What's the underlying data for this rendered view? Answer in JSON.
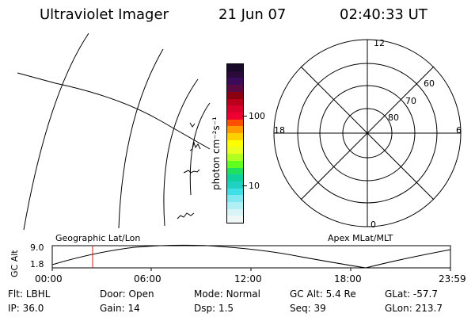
{
  "header": {
    "instrument": "Ultraviolet Imager",
    "date": "21 Jun 07",
    "time": "02:40:33 UT"
  },
  "colorbar": {
    "unit_label": "photon cm⁻²s⁻¹",
    "ticks": [
      "100",
      "10"
    ],
    "colors": [
      "#1a0a2a",
      "#2a0a3a",
      "#3c0c5a",
      "#5a0a40",
      "#8a0010",
      "#b8001a",
      "#d8002a",
      "#ee0030",
      "#ff5000",
      "#ff9a00",
      "#ffd000",
      "#ffff00",
      "#e8ff20",
      "#b0ff20",
      "#60ff20",
      "#20e060",
      "#10d0a0",
      "#20d0c0",
      "#40e0e8",
      "#80e8f0",
      "#b0f0f4",
      "#d8f4f6",
      "#eef6f6"
    ]
  },
  "polar_plot": {
    "mlt_labels": [
      "12",
      "18",
      "6",
      "0"
    ],
    "lat_labels": [
      "80",
      "70",
      "60"
    ]
  },
  "timeline": {
    "ylabel": "GC Alt",
    "yticks": [
      "9.0",
      "1.8"
    ],
    "left_title": "Geographic Lat/Lon",
    "right_title": "Apex MLat/MLT",
    "xticks": [
      "00:00",
      "06:00",
      "12:00",
      "18:00",
      "23:59"
    ],
    "marker_time": "02:40",
    "marker_color": "#cc2222"
  },
  "status": {
    "row1": [
      {
        "key": "Flt:",
        "value": "LBHL"
      },
      {
        "key": "Door:",
        "value": "Open"
      },
      {
        "key": "Mode:",
        "value": "Normal"
      },
      {
        "key": "GC Alt:",
        "value": "5.4 Re"
      },
      {
        "key": "GLat:",
        "value": "-57.7"
      }
    ],
    "row2": [
      {
        "key": "IP:",
        "value": "36.0"
      },
      {
        "key": "Gain:",
        "value": "14"
      },
      {
        "key": "Dsp:",
        "value": "1.5"
      },
      {
        "key": "Seq:",
        "value": "39"
      },
      {
        "key": "GLon:",
        "value": "213.7"
      }
    ]
  }
}
